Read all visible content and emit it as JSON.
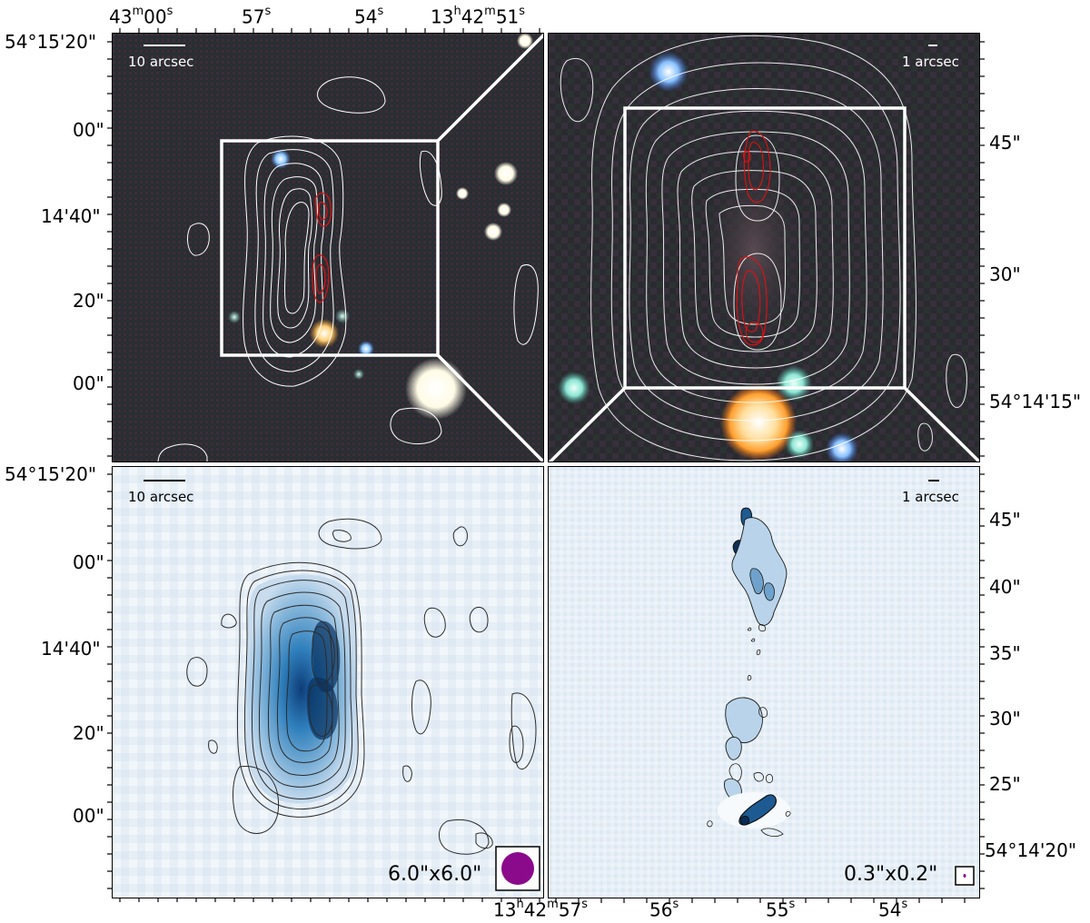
{
  "top_axis": {
    "ra_labels": [
      {
        "h": "",
        "m": "43",
        "mu": "m",
        "s": "00",
        "su": "s"
      },
      {
        "s": "57",
        "su": "s"
      },
      {
        "s": "54",
        "su": "s"
      },
      {
        "h": "13",
        "hu": "h",
        "m": "42",
        "mu": "m",
        "s": "51",
        "su": "s"
      }
    ]
  },
  "left_axis": {
    "top_panel_labels": [
      "54°15'20\"",
      "00\"",
      "14'40\"",
      "20\"",
      "00\""
    ],
    "bottom_panel_labels": [
      "54°15'20\"",
      "00\"",
      "14'40\"",
      "20\"",
      "00\""
    ]
  },
  "right_axis": {
    "top_panel_labels": [
      "45\"",
      "30\"",
      "54°14'15\""
    ],
    "bottom_panel_labels": [
      "45\"",
      "40\"",
      "35\"",
      "30\"",
      "25\"",
      "54°14'20\""
    ]
  },
  "bottom_axis": {
    "ra_labels": [
      {
        "h": "13",
        "hu": "h",
        "m": "42",
        "mu": "m",
        "s": "57",
        "su": "s"
      },
      {
        "s": "56",
        "su": "s"
      },
      {
        "s": "55",
        "su": "s"
      },
      {
        "s": "54",
        "su": "s"
      }
    ]
  },
  "panels": {
    "top_left": {
      "scale_label": "10 arcsec"
    },
    "top_right": {
      "scale_label": "1 arcsec"
    },
    "bottom_left": {
      "scale_label": "10 arcsec",
      "beam_label": "6.0\"x6.0\"",
      "beam_color": "#8b0a8b"
    },
    "bottom_right": {
      "scale_label": "1 arcsec",
      "beam_label": "0.3\"x0.2\"",
      "beam_color": "#8b0a8b"
    }
  },
  "colors": {
    "contour_white": "#ffffff",
    "contour_red": "#e01010",
    "contour_black": "#222222",
    "blue_map": "#1f6fb0"
  }
}
